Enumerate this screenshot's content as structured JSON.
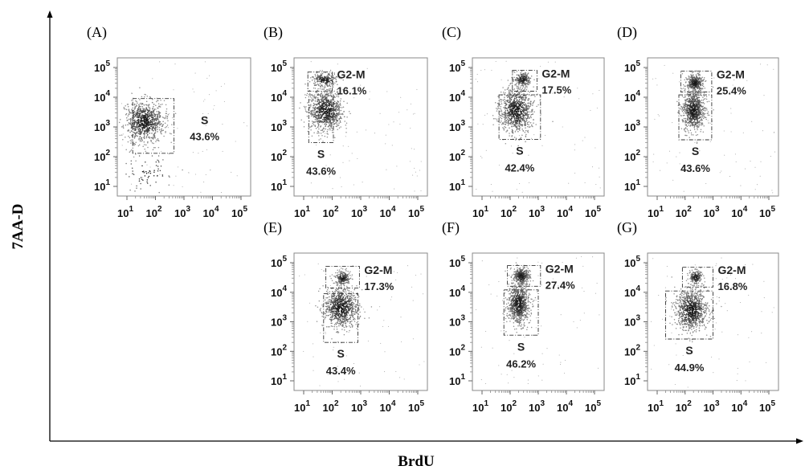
{
  "figure": {
    "x_axis_label": "BrdU",
    "y_axis_label": "7AA-D"
  },
  "chart_data": [
    {
      "type": "scatter",
      "panel_label": "(A)",
      "xlabel": "",
      "ylabel": "",
      "x_ticks": [
        "10",
        "10",
        "10",
        "10",
        "10"
      ],
      "x_tick_exponents": [
        "1",
        "2",
        "3",
        "4",
        "5"
      ],
      "y_ticks": [
        "10",
        "10",
        "10",
        "10",
        "10"
      ],
      "y_tick_exponents": [
        "1",
        "2",
        "3",
        "4",
        "5"
      ],
      "xscale": "log",
      "yscale": "log",
      "xlim": [
        10,
        100000
      ],
      "ylim": [
        10,
        100000
      ],
      "populations": [
        {
          "cx": 40,
          "cy": 1500,
          "spread_x": 0.35,
          "spread_y": 0.35,
          "n": 850
        },
        {
          "cx": 50,
          "cy": 30,
          "spread_x": 0.5,
          "spread_y": 0.4,
          "n": 80
        }
      ],
      "gates": [
        {
          "name": "S",
          "percent": "43.6%",
          "x_range": [
            16,
            450
          ],
          "y_range": [
            130,
            9000
          ]
        }
      ]
    },
    {
      "type": "scatter",
      "panel_label": "(B)",
      "xlabel": "",
      "ylabel": "",
      "x_ticks": [
        "10",
        "10",
        "10",
        "10",
        "10"
      ],
      "x_tick_exponents": [
        "1",
        "2",
        "3",
        "4",
        "5"
      ],
      "y_ticks": [
        "10",
        "10",
        "10",
        "10",
        "10"
      ],
      "y_tick_exponents": [
        "1",
        "2",
        "3",
        "4",
        "5"
      ],
      "xscale": "log",
      "yscale": "log",
      "xlim": [
        10,
        100000
      ],
      "ylim": [
        10,
        100000
      ],
      "populations": [
        {
          "cx": 60,
          "cy": 3500,
          "spread_x": 0.3,
          "spread_y": 0.35,
          "n": 850
        },
        {
          "cx": 55,
          "cy": 38000,
          "spread_x": 0.25,
          "spread_y": 0.12,
          "n": 200
        }
      ],
      "gates": [
        {
          "name": "G2-M",
          "percent": "16.1%",
          "x_range": [
            14,
            100
          ],
          "y_range": [
            16000,
            70000
          ]
        },
        {
          "name": "S",
          "percent": "43.6%",
          "x_range": [
            15,
            110
          ],
          "y_range": [
            300,
            12000
          ]
        }
      ]
    },
    {
      "type": "scatter",
      "panel_label": "(C)",
      "xlabel": "",
      "ylabel": "",
      "x_ticks": [
        "10",
        "10",
        "10",
        "10",
        "10"
      ],
      "x_tick_exponents": [
        "1",
        "2",
        "3",
        "4",
        "5"
      ],
      "y_ticks": [
        "10",
        "10",
        "10",
        "10",
        "10"
      ],
      "y_tick_exponents": [
        "1",
        "2",
        "3",
        "4",
        "5"
      ],
      "xscale": "log",
      "yscale": "log",
      "xlim": [
        10,
        100000
      ],
      "ylim": [
        10,
        100000
      ],
      "populations": [
        {
          "cx": 170,
          "cy": 3500,
          "spread_x": 0.3,
          "spread_y": 0.4,
          "n": 850
        },
        {
          "cx": 280,
          "cy": 40000,
          "spread_x": 0.15,
          "spread_y": 0.12,
          "n": 200
        }
      ],
      "gates": [
        {
          "name": "G2-M",
          "percent": "17.5%",
          "x_range": [
            120,
            900
          ],
          "y_range": [
            16000,
            80000
          ]
        },
        {
          "name": "S",
          "percent": "42.4%",
          "x_range": [
            40,
            1200
          ],
          "y_range": [
            380,
            12000
          ]
        }
      ]
    },
    {
      "type": "scatter",
      "panel_label": "(D)",
      "xlabel": "",
      "ylabel": "",
      "x_ticks": [
        "10",
        "10",
        "10",
        "10",
        "10"
      ],
      "x_tick_exponents": [
        "1",
        "2",
        "3",
        "4",
        "5"
      ],
      "y_ticks": [
        "10",
        "10",
        "10",
        "10",
        "10"
      ],
      "y_tick_exponents": [
        "1",
        "2",
        "3",
        "4",
        "5"
      ],
      "xscale": "log",
      "yscale": "log",
      "xlim": [
        10,
        100000
      ],
      "ylim": [
        10,
        100000
      ],
      "populations": [
        {
          "cx": 200,
          "cy": 3500,
          "spread_x": 0.2,
          "spread_y": 0.35,
          "n": 750
        },
        {
          "cx": 230,
          "cy": 30000,
          "spread_x": 0.15,
          "spread_y": 0.15,
          "n": 350
        }
      ],
      "gates": [
        {
          "name": "G2-M",
          "percent": "25.4%",
          "x_range": [
            70,
            900
          ],
          "y_range": [
            15000,
            75000
          ]
        },
        {
          "name": "S",
          "percent": "43.6%",
          "x_range": [
            60,
            900
          ],
          "y_range": [
            370,
            12000
          ]
        }
      ]
    },
    {
      "type": "scatter",
      "panel_label": "(E)",
      "xlabel": "",
      "ylabel": "",
      "x_ticks": [
        "10",
        "10",
        "10",
        "10",
        "10"
      ],
      "x_tick_exponents": [
        "1",
        "2",
        "3",
        "4",
        "5"
      ],
      "y_ticks": [
        "10",
        "10",
        "10",
        "10",
        "10"
      ],
      "y_tick_exponents": [
        "1",
        "2",
        "3",
        "4",
        "5"
      ],
      "xscale": "log",
      "yscale": "log",
      "xlim": [
        10,
        100000
      ],
      "ylim": [
        10,
        100000
      ],
      "populations": [
        {
          "cx": 200,
          "cy": 3000,
          "spread_x": 0.3,
          "spread_y": 0.35,
          "n": 850
        },
        {
          "cx": 240,
          "cy": 30000,
          "spread_x": 0.13,
          "spread_y": 0.13,
          "n": 200
        }
      ],
      "gates": [
        {
          "name": "G2-M",
          "percent": "17.3%",
          "x_range": [
            60,
            900
          ],
          "y_range": [
            14000,
            75000
          ]
        },
        {
          "name": "S",
          "percent": "43.4%",
          "x_range": [
            50,
            800
          ],
          "y_range": [
            200,
            9000
          ]
        }
      ]
    },
    {
      "type": "scatter",
      "panel_label": "(F)",
      "xlabel": "",
      "ylabel": "",
      "x_ticks": [
        "10",
        "10",
        "10",
        "10",
        "10"
      ],
      "x_tick_exponents": [
        "1",
        "2",
        "3",
        "4",
        "5"
      ],
      "y_ticks": [
        "10",
        "10",
        "10",
        "10",
        "10"
      ],
      "y_tick_exponents": [
        "1",
        "2",
        "3",
        "4",
        "5"
      ],
      "xscale": "log",
      "yscale": "log",
      "xlim": [
        10,
        100000
      ],
      "ylim": [
        10,
        100000
      ],
      "populations": [
        {
          "cx": 200,
          "cy": 4000,
          "spread_x": 0.2,
          "spread_y": 0.35,
          "n": 750
        },
        {
          "cx": 250,
          "cy": 35000,
          "spread_x": 0.15,
          "spread_y": 0.15,
          "n": 350
        }
      ],
      "gates": [
        {
          "name": "G2-M",
          "percent": "27.4%",
          "x_range": [
            80,
            1200
          ],
          "y_range": [
            16000,
            80000
          ]
        },
        {
          "name": "S",
          "percent": "46.2%",
          "x_range": [
            60,
            1000
          ],
          "y_range": [
            350,
            12000
          ]
        }
      ]
    },
    {
      "type": "scatter",
      "panel_label": "(G)",
      "xlabel": "",
      "ylabel": "",
      "x_ticks": [
        "10",
        "10",
        "10",
        "10",
        "10"
      ],
      "x_tick_exponents": [
        "1",
        "2",
        "3",
        "4",
        "5"
      ],
      "y_ticks": [
        "10",
        "10",
        "10",
        "10",
        "10"
      ],
      "y_tick_exponents": [
        "1",
        "2",
        "3",
        "4",
        "5"
      ],
      "xscale": "log",
      "yscale": "log",
      "xlim": [
        10,
        100000
      ],
      "ylim": [
        10,
        100000
      ],
      "populations": [
        {
          "cx": 170,
          "cy": 2500,
          "spread_x": 0.3,
          "spread_y": 0.35,
          "n": 850
        },
        {
          "cx": 240,
          "cy": 32000,
          "spread_x": 0.12,
          "spread_y": 0.12,
          "n": 200
        }
      ],
      "gates": [
        {
          "name": "G2-M",
          "percent": "16.8%",
          "x_range": [
            80,
            1000
          ],
          "y_range": [
            15000,
            70000
          ]
        },
        {
          "name": "S",
          "percent": "44.9%",
          "x_range": [
            20,
            1000
          ],
          "y_range": [
            260,
            11000
          ]
        }
      ]
    }
  ]
}
